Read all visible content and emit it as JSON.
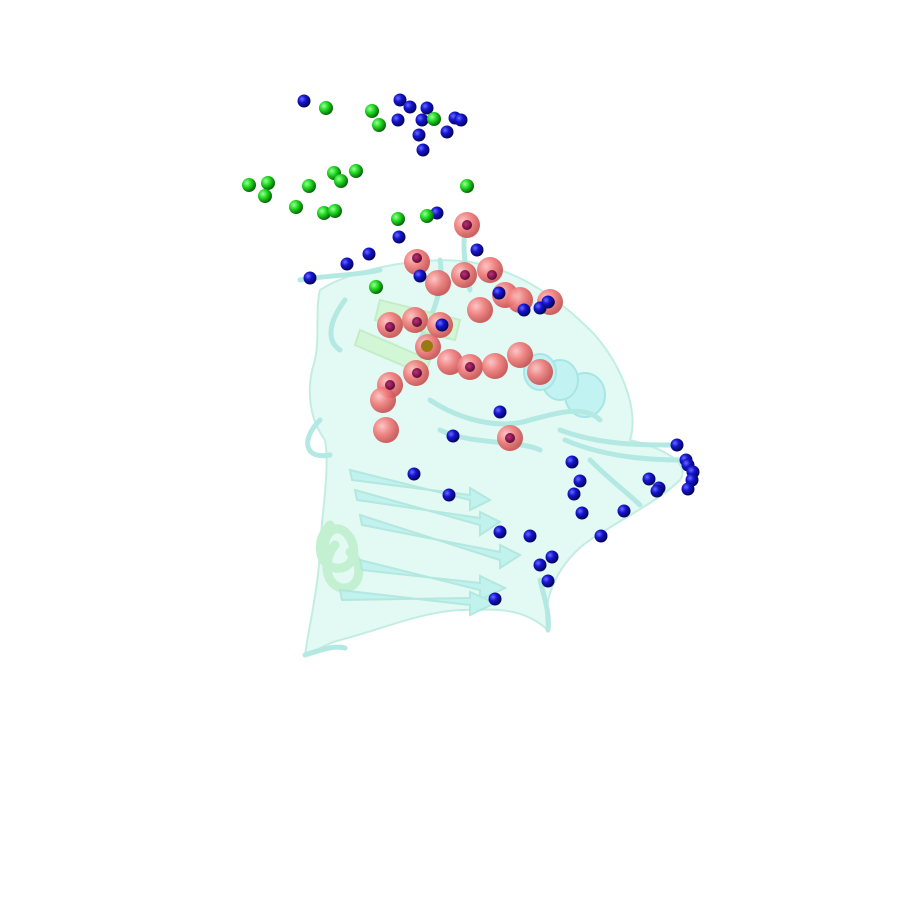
{
  "scene": {
    "description_kind": "molecular-structure-render",
    "background_color": "#ffffff",
    "colors": {
      "cartoon_cyan": "#a8f0f0",
      "cartoon_green": "#c8f5c8",
      "sphere_blue": "#1010cc",
      "sphere_green": "#20dd20",
      "sphere_red": "#f08080",
      "sphere_magenta": "#9a1060"
    },
    "icons": [
      "protein-cartoon",
      "blue-atom-sphere",
      "green-atom-sphere",
      "red-atom-sphere"
    ]
  }
}
